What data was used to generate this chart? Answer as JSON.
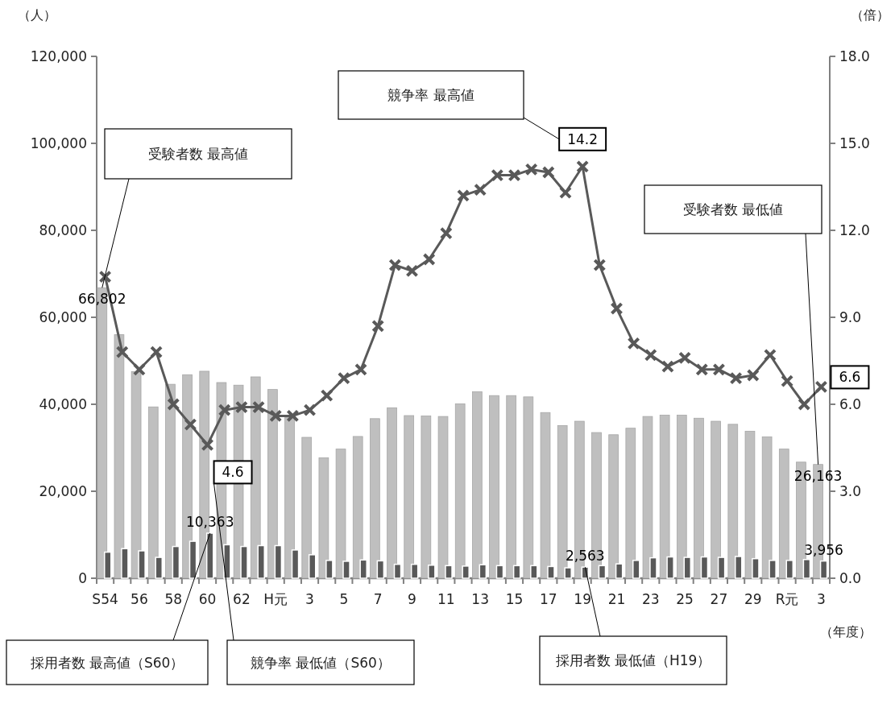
{
  "chart_data": {
    "type": "bar",
    "xlabel": "（年度）",
    "ylabel": "（人）",
    "y2label": "（倍）",
    "categories": [
      "S54",
      null,
      "56",
      null,
      "58",
      null,
      "60",
      null,
      "62",
      null,
      "H元",
      null,
      "3",
      null,
      "5",
      null,
      "7",
      null,
      "9",
      null,
      "11",
      null,
      "13",
      null,
      "15",
      null,
      "17",
      null,
      "19",
      null,
      "21",
      null,
      "23",
      null,
      "25",
      null,
      "27",
      null,
      "29",
      null,
      "R元",
      null,
      "3"
    ],
    "ylim": [
      0,
      120000
    ],
    "yticks": [
      {
        "value": 0,
        "label": "0"
      },
      {
        "value": 20000,
        "label": "20,000"
      },
      {
        "value": 40000,
        "label": "40,000"
      },
      {
        "value": 60000,
        "label": "60,000"
      },
      {
        "value": 80000,
        "label": "80,000"
      },
      {
        "value": 100000,
        "label": "100,000"
      },
      {
        "value": 120000,
        "label": "120,000"
      }
    ],
    "y2lim": [
      0,
      18
    ],
    "y2ticks": [
      {
        "value": 0,
        "label": "0.0"
      },
      {
        "value": 3,
        "label": "3.0"
      },
      {
        "value": 6,
        "label": "6.0"
      },
      {
        "value": 9,
        "label": "9.0"
      },
      {
        "value": 12,
        "label": "12.0"
      },
      {
        "value": 15,
        "label": "15.0"
      },
      {
        "value": 18,
        "label": "18.0"
      }
    ],
    "marker": "cross",
    "series": [
      {
        "color": "#bfbfbf",
        "values": [
          66802,
          56000,
          47500,
          39400,
          44600,
          46800,
          47600,
          45000,
          44400,
          46300,
          43400,
          37000,
          32400,
          27700,
          29700,
          32600,
          36700,
          39200,
          37400,
          37300,
          37200,
          40100,
          42900,
          42000,
          42000,
          41700,
          38100,
          35100,
          36100,
          33500,
          33000,
          34500,
          37200,
          37500,
          37500,
          36800,
          36100,
          35400,
          33800,
          32500,
          29700,
          26700,
          26163
        ],
        "value_labels": [
          "66,802",
          null,
          null,
          null,
          null,
          null,
          null,
          null,
          null,
          null,
          null,
          null,
          null,
          null,
          null,
          null,
          null,
          null,
          null,
          null,
          null,
          null,
          null,
          null,
          null,
          null,
          null,
          null,
          null,
          null,
          null,
          null,
          null,
          null,
          null,
          null,
          null,
          null,
          null,
          null,
          null,
          null,
          "26,163"
        ]
      },
      {
        "color": "#595959",
        "values": [
          6000,
          6800,
          6300,
          4800,
          7300,
          8500,
          10363,
          7700,
          7300,
          7500,
          7500,
          6500,
          5400,
          4100,
          3900,
          4200,
          4000,
          3200,
          3200,
          3000,
          2900,
          2800,
          3100,
          2900,
          2900,
          2900,
          2700,
          2400,
          2563,
          2900,
          3300,
          4100,
          4700,
          4900,
          4800,
          4900,
          4800,
          5000,
          4500,
          4100,
          4100,
          4300,
          3956
        ],
        "value_labels": [
          null,
          null,
          null,
          null,
          null,
          null,
          "10,363",
          null,
          null,
          null,
          null,
          null,
          null,
          null,
          null,
          null,
          null,
          null,
          null,
          null,
          null,
          null,
          null,
          null,
          null,
          null,
          null,
          null,
          "2,563",
          null,
          null,
          null,
          null,
          null,
          null,
          null,
          null,
          null,
          null,
          null,
          null,
          null,
          "3,956"
        ]
      },
      {
        "type": "line",
        "axis": "y2",
        "color": "#595959",
        "values": [
          10.4,
          7.8,
          7.2,
          7.8,
          6.0,
          5.3,
          4.6,
          5.8,
          5.9,
          5.9,
          5.6,
          5.6,
          5.8,
          6.3,
          6.9,
          7.2,
          8.7,
          10.8,
          10.6,
          11.0,
          11.9,
          13.2,
          13.4,
          13.9,
          13.9,
          14.1,
          14.0,
          13.3,
          14.2,
          10.8,
          9.3,
          8.1,
          7.7,
          7.3,
          7.6,
          7.2,
          7.2,
          6.9,
          7.0,
          7.7,
          6.8,
          6.0,
          6.6
        ],
        "value_labels": [
          null,
          null,
          null,
          null,
          null,
          null,
          "4.6",
          null,
          null,
          null,
          null,
          null,
          null,
          null,
          null,
          null,
          null,
          null,
          null,
          null,
          null,
          null,
          null,
          null,
          null,
          null,
          null,
          null,
          "14.2",
          null,
          null,
          null,
          null,
          null,
          null,
          null,
          null,
          null,
          null,
          null,
          null,
          null,
          "6.6"
        ]
      }
    ],
    "annotations": [
      "受験者数 最高値",
      "競争率 最高値",
      "受験者数 最低値",
      {
        "text": "採用者数 最高値（S60）",
        "x": "60",
        "y": 10363
      },
      "競争率 最低値（S60）",
      {
        "text": "採用者数 最低値（H19）",
        "x": "19",
        "y": 2563
      }
    ]
  }
}
